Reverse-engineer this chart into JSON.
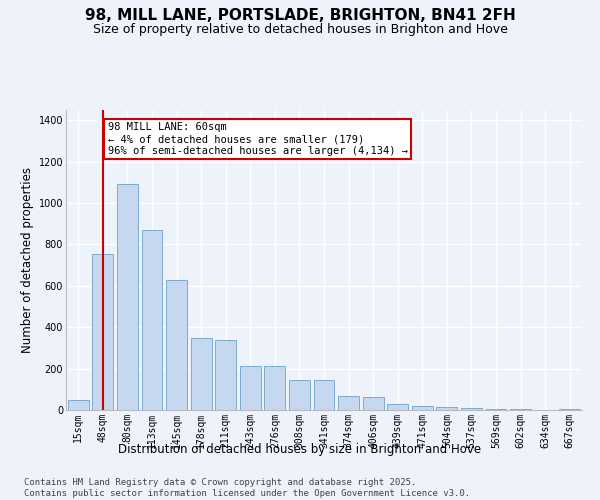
{
  "title": "98, MILL LANE, PORTSLADE, BRIGHTON, BN41 2FH",
  "subtitle": "Size of property relative to detached houses in Brighton and Hove",
  "xlabel": "Distribution of detached houses by size in Brighton and Hove",
  "ylabel": "Number of detached properties",
  "categories": [
    "15sqm",
    "48sqm",
    "80sqm",
    "113sqm",
    "145sqm",
    "178sqm",
    "211sqm",
    "243sqm",
    "276sqm",
    "308sqm",
    "341sqm",
    "374sqm",
    "406sqm",
    "439sqm",
    "471sqm",
    "504sqm",
    "537sqm",
    "569sqm",
    "602sqm",
    "634sqm",
    "667sqm"
  ],
  "values": [
    50,
    755,
    1090,
    870,
    630,
    350,
    340,
    215,
    215,
    145,
    145,
    70,
    65,
    30,
    20,
    13,
    10,
    7,
    4,
    1,
    5
  ],
  "bar_color": "#c5d8f0",
  "bar_edge_color": "#7bacd4",
  "vline_x_index": 1,
  "vline_color": "#cc0000",
  "annotation_text": "98 MILL LANE: 60sqm\n← 4% of detached houses are smaller (179)\n96% of semi-detached houses are larger (4,134) →",
  "annotation_box_color": "#ffffff",
  "annotation_box_edge": "#cc0000",
  "ylim": [
    0,
    1450
  ],
  "yticks": [
    0,
    200,
    400,
    600,
    800,
    1000,
    1200,
    1400
  ],
  "footer": "Contains HM Land Registry data © Crown copyright and database right 2025.\nContains public sector information licensed under the Open Government Licence v3.0.",
  "background_color": "#eef2fa",
  "grid_color": "#ffffff",
  "title_fontsize": 11,
  "subtitle_fontsize": 9,
  "label_fontsize": 8.5,
  "tick_fontsize": 7,
  "footer_fontsize": 6.5,
  "annotation_fontsize": 7.5
}
